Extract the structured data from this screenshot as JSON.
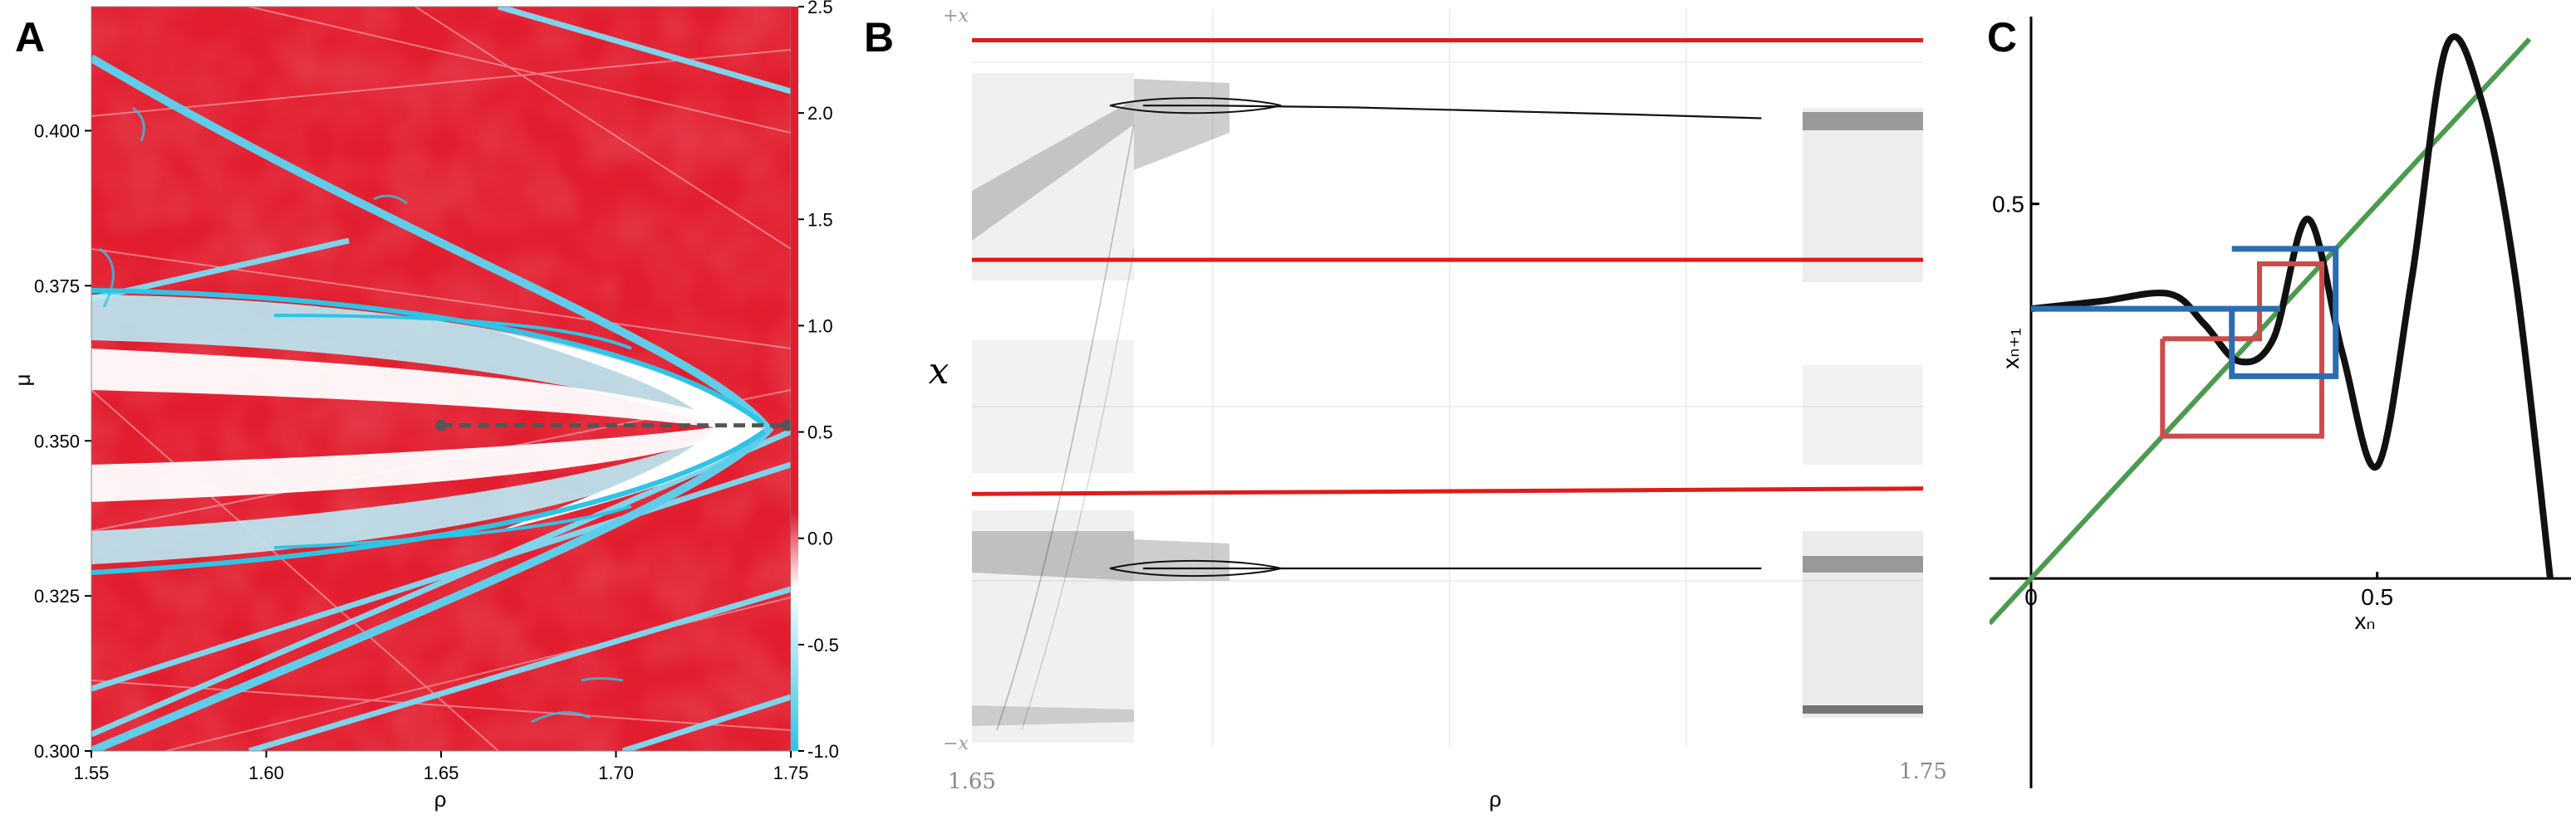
{
  "colors": {
    "map_red": "#e21d2e",
    "map_cyan": "#2ec4e6",
    "bif_red": "#e01b1b",
    "curve_black": "#111111",
    "identity_green": "#4c9a4e",
    "cobweb_blue": "#2a6db3",
    "cobweb_red": "#cc4b4b",
    "dash_gray": "#555555"
  },
  "chart_data": [
    {
      "panel": "A",
      "type": "heatmap",
      "xlabel": "ρ",
      "ylabel": "μ",
      "xlim": [
        1.55,
        1.75
      ],
      "ylim": [
        0.3,
        0.42
      ],
      "x_ticks": [
        "1.55",
        "1.60",
        "1.65",
        "1.70",
        "1.75"
      ],
      "y_ticks": [
        "0.300",
        "0.325",
        "0.350",
        "0.375",
        "0.400"
      ],
      "colorbar": {
        "range": [
          -1.0,
          2.5
        ],
        "ticks": [
          "2.5",
          "2.0",
          "1.5",
          "1.0",
          "0.5",
          "0.0",
          "-0.5",
          "-1.0"
        ]
      },
      "annotation": {
        "type": "dashed-line",
        "mu": 0.3525,
        "rho_start": 1.65,
        "rho_end": 1.75
      }
    },
    {
      "panel": "B",
      "type": "scatter",
      "xlabel": "ρ",
      "ylabel": "x",
      "x_tick_labels": [
        "1.65",
        "1.75"
      ],
      "y_tick_labels": [
        "+x",
        "−x"
      ],
      "xlim": [
        1.65,
        1.75
      ],
      "ylim": [
        -1,
        1
      ],
      "red_lines": [
        {
          "y_left": 0.935,
          "y_right": 0.935
        },
        {
          "y_left": 0.33,
          "y_right": 0.33
        },
        {
          "y_left": -0.315,
          "y_right": -0.3
        }
      ],
      "branches": [
        {
          "name": "upper",
          "rho": [
            1.668,
            1.675,
            1.69,
            1.72,
            1.733
          ],
          "x": [
            0.755,
            0.755,
            0.75,
            0.73,
            0.72
          ]
        },
        {
          "name": "lower",
          "rho": [
            1.668,
            1.675,
            1.69,
            1.72,
            1.733
          ],
          "x": [
            -0.52,
            -0.52,
            -0.52,
            -0.52,
            -0.52
          ]
        }
      ]
    },
    {
      "panel": "C",
      "type": "line",
      "xlabel": "xₙ",
      "ylabel": "xₙ₊₁",
      "xlim": [
        -0.06,
        0.78
      ],
      "ylim": [
        -0.28,
        0.75
      ],
      "x_ticks": [
        "0",
        "0.5"
      ],
      "y_ticks": [
        "0.5"
      ],
      "series": [
        {
          "role": "map",
          "x": [
            0.0,
            0.1,
            0.2,
            0.25,
            0.3,
            0.35,
            0.4,
            0.45,
            0.5,
            0.55,
            0.6,
            0.65,
            0.7,
            0.75
          ],
          "y": [
            0.36,
            0.37,
            0.38,
            0.34,
            0.29,
            0.32,
            0.48,
            0.3,
            0.15,
            0.4,
            0.71,
            0.64,
            0.4,
            0.0
          ]
        },
        {
          "role": "identity",
          "x": [
            -0.06,
            0.72
          ],
          "y": [
            -0.06,
            0.72
          ]
        },
        {
          "role": "cobweb-blue",
          "x": [
            0.29,
            0.29,
            0.44,
            0.44,
            0.29
          ],
          "y": [
            0.36,
            0.27,
            0.27,
            0.44,
            0.44
          ]
        },
        {
          "role": "cobweb-red",
          "x": [
            0.19,
            0.19,
            0.42,
            0.42,
            0.33,
            0.33,
            0.19
          ],
          "y": [
            0.32,
            0.19,
            0.19,
            0.42,
            0.42,
            0.32,
            0.32
          ]
        },
        {
          "role": "cobweb-tail",
          "x": [
            0.0,
            0.36
          ],
          "y": [
            0.36,
            0.36
          ]
        }
      ]
    }
  ],
  "panels": [
    {
      "letter": "A"
    },
    {
      "letter": "B"
    },
    {
      "letter": "C"
    }
  ]
}
